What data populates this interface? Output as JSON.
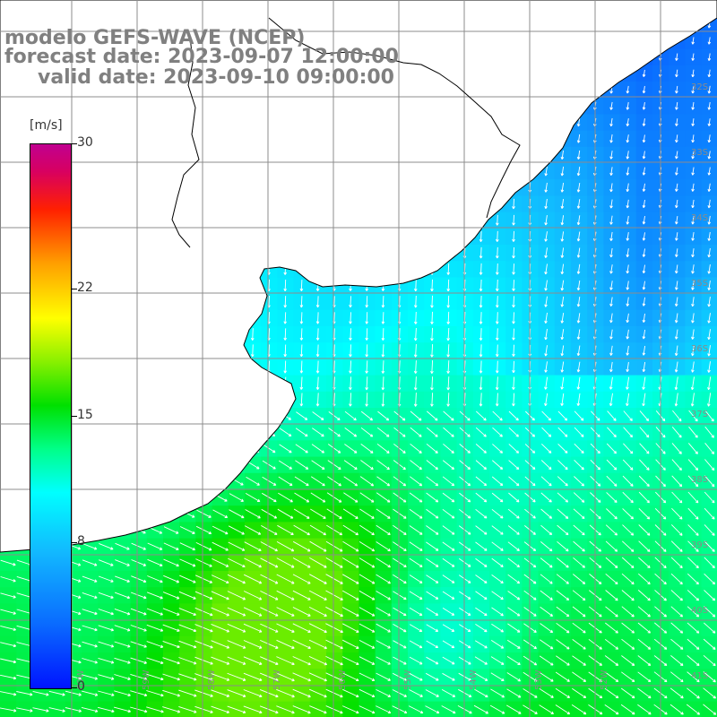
{
  "title": {
    "line1": "modelo GEFS-WAVE (NCEP)",
    "line2": "forecast date: 2023-09-07 12:00:00",
    "line3": "valid date: 2023-09-10 09:00:00"
  },
  "variable": "wind speed and direction",
  "colorbar": {
    "units": "[m/s]",
    "min": 0,
    "max": 30,
    "ticks": [
      {
        "label": "30",
        "value": 30
      },
      {
        "label": "22",
        "value": 22
      },
      {
        "label": "15",
        "value": 15
      },
      {
        "label": "8",
        "value": 8
      },
      {
        "label": "0",
        "value": 0
      }
    ],
    "colors": [
      "#0014ff",
      "#0a6cff",
      "#12b8ff",
      "#00ffff",
      "#00ff88",
      "#00e000",
      "#88f000",
      "#ffff00",
      "#ffa000",
      "#ff2000",
      "#c00090"
    ]
  },
  "grid": {
    "lat_labels": [
      "32S",
      "33S",
      "34S",
      "35S",
      "36S",
      "37S",
      "38S",
      "39S",
      "40S",
      "41S"
    ],
    "lon_labels": [
      "60W",
      "59W",
      "58W",
      "57W",
      "56W",
      "55W",
      "54W",
      "53W",
      "52W"
    ]
  },
  "colors": {
    "land": "#ffffff",
    "coastline": "#000000",
    "gridline": "#8c8c8c",
    "arrow": "#ffffff",
    "title_text": "#808080"
  }
}
